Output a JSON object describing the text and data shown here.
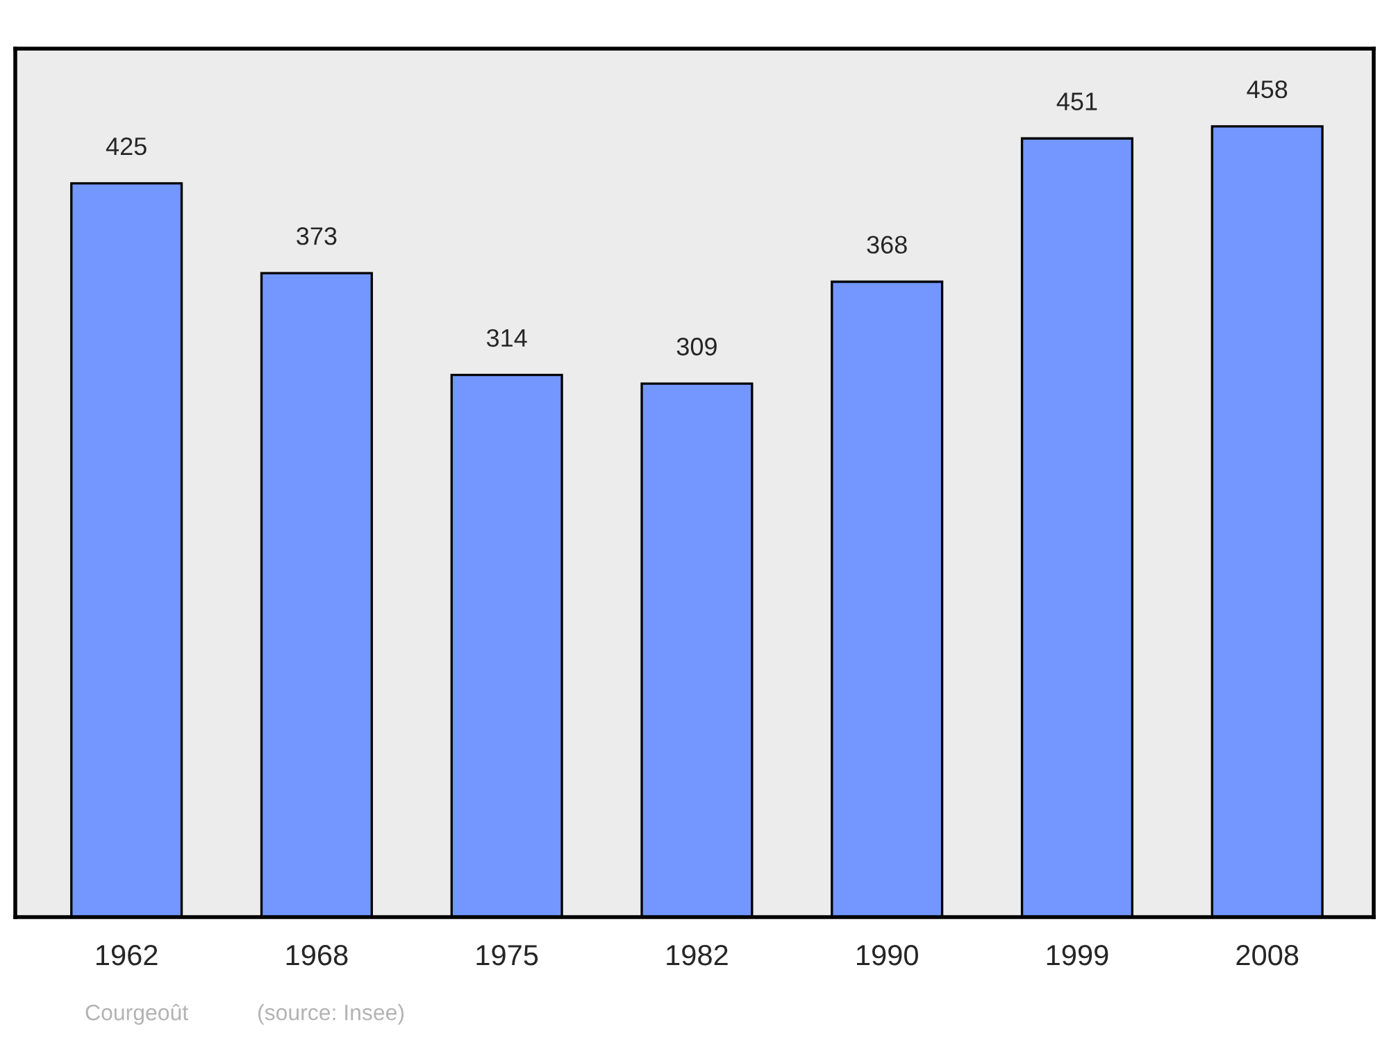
{
  "chart_data": {
    "type": "bar",
    "categories": [
      "1962",
      "1968",
      "1975",
      "1982",
      "1990",
      "1999",
      "2008"
    ],
    "values": [
      425,
      373,
      314,
      309,
      368,
      451,
      458
    ],
    "color": "#7397ff",
    "data_labels": true,
    "ylim": [
      0,
      503
    ],
    "grid": false,
    "legend": false,
    "annotations": [
      "Courgeoût",
      "(source: Insee)"
    ]
  }
}
